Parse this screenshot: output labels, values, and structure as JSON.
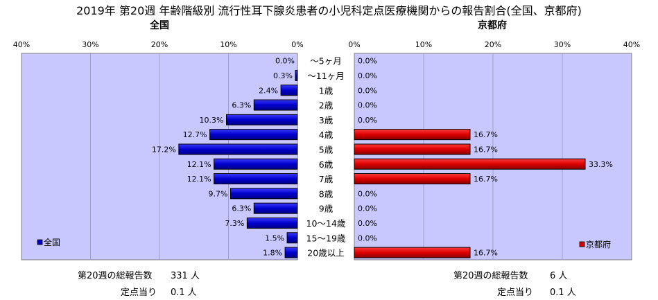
{
  "title": "2019年 第20週 年齢階級別 流行性耳下腺炎患者の小児科定点医療機関からの報告割合(全国、京都府)",
  "panels": {
    "left_title": "全国",
    "right_title": "京都府"
  },
  "colors": {
    "national_bar": "#0000cc",
    "kyoto_bar": "#dd0000",
    "plot_bg": "#c8c8ff",
    "grid": "#a0a0c8"
  },
  "chart_data": {
    "type": "bar",
    "orientation": "horizontal",
    "categories": [
      "～5ヶ月",
      "～11ヶ月",
      "1歳",
      "2歳",
      "3歳",
      "4歳",
      "5歳",
      "6歳",
      "7歳",
      "8歳",
      "9歳",
      "10～14歳",
      "15～19歳",
      "20歳以上"
    ],
    "series": [
      {
        "name": "全国",
        "values": [
          0.0,
          0.3,
          2.4,
          6.3,
          10.3,
          12.7,
          17.2,
          12.1,
          12.1,
          9.7,
          6.3,
          7.3,
          1.5,
          1.8
        ],
        "labels": [
          "0.0%",
          "0.3%",
          "2.4%",
          "6.3%",
          "10.3%",
          "12.7%",
          "17.2%",
          "12.1%",
          "12.1%",
          "9.7%",
          "6.3%",
          "7.3%",
          "1.5%",
          "1.8%"
        ]
      },
      {
        "name": "京都府",
        "values": [
          0.0,
          0.0,
          0.0,
          0.0,
          0.0,
          16.7,
          16.7,
          33.3,
          16.7,
          0.0,
          0.0,
          0.0,
          0.0,
          16.7
        ],
        "labels": [
          "0.0%",
          "0.0%",
          "0.0%",
          "0.0%",
          "0.0%",
          "16.7%",
          "16.7%",
          "33.3%",
          "16.7%",
          "0.0%",
          "0.0%",
          "0.0%",
          "0.0%",
          "16.7%"
        ]
      }
    ],
    "xlim": [
      0,
      40
    ],
    "left_ticks": [
      "40%",
      "30%",
      "20%",
      "10%",
      "0%"
    ],
    "right_ticks": [
      "0%",
      "10%",
      "20%",
      "30%",
      "40%"
    ],
    "grid": true,
    "legend_left": "bottom-left",
    "legend_right": "bottom-right"
  },
  "stats": {
    "national": {
      "total_label": "第20週の総報告数",
      "total_value": "331 人",
      "per_label": "定点当り",
      "per_value": "0.1 人"
    },
    "kyoto": {
      "total_label": "第20週の総報告数",
      "total_value": "6 人",
      "per_label": "定点当り",
      "per_value": "0.1 人"
    }
  }
}
